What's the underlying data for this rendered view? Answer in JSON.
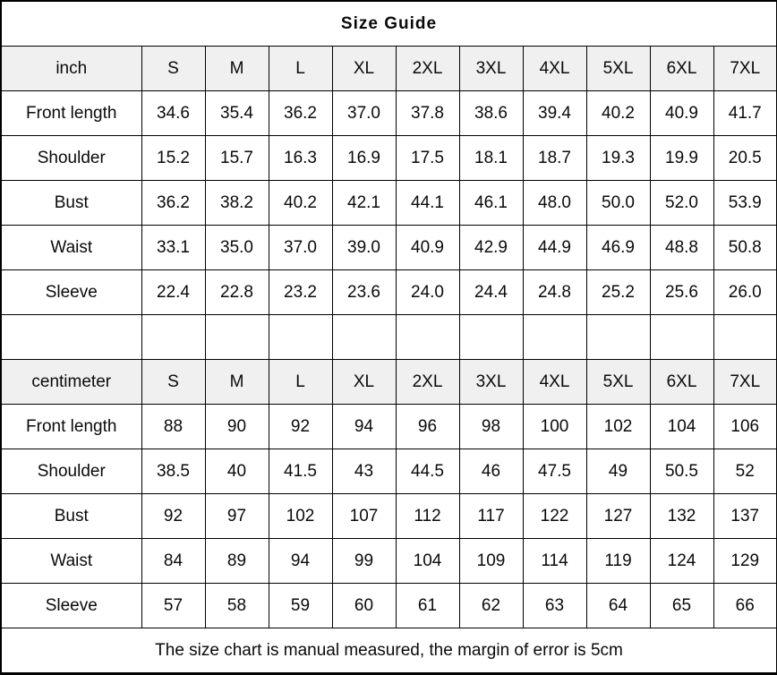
{
  "title": "Size Guide",
  "footer_note": "The size chart is manual measured, the margin of error is 5cm",
  "colors": {
    "header_background": "#f0f0f0",
    "border": "#000000",
    "text": "#0a0a0a",
    "page_background": "#ffffff"
  },
  "chart_data": [
    {
      "type": "table",
      "title": "Size Guide",
      "unit_header": "inch",
      "columns": [
        "inch",
        "S",
        "M",
        "L",
        "XL",
        "2XL",
        "3XL",
        "4XL",
        "5XL",
        "6XL",
        "7XL"
      ],
      "rows": [
        {
          "label": "Front length",
          "values": [
            "34.6",
            "35.4",
            "36.2",
            "37.0",
            "37.8",
            "38.6",
            "39.4",
            "40.2",
            "40.9",
            "41.7"
          ]
        },
        {
          "label": "Shoulder",
          "values": [
            "15.2",
            "15.7",
            "16.3",
            "16.9",
            "17.5",
            "18.1",
            "18.7",
            "19.3",
            "19.9",
            "20.5"
          ]
        },
        {
          "label": "Bust",
          "values": [
            "36.2",
            "38.2",
            "40.2",
            "42.1",
            "44.1",
            "46.1",
            "48.0",
            "50.0",
            "52.0",
            "53.9"
          ]
        },
        {
          "label": "Waist",
          "values": [
            "33.1",
            "35.0",
            "37.0",
            "39.0",
            "40.9",
            "42.9",
            "44.9",
            "46.9",
            "48.8",
            "50.8"
          ]
        },
        {
          "label": "Sleeve",
          "values": [
            "22.4",
            "22.8",
            "23.2",
            "23.6",
            "24.0",
            "24.4",
            "24.8",
            "25.2",
            "25.6",
            "26.0"
          ]
        }
      ]
    },
    {
      "type": "table",
      "title": "Size Guide",
      "unit_header": "centimeter",
      "columns": [
        "centimeter",
        "S",
        "M",
        "L",
        "XL",
        "2XL",
        "3XL",
        "4XL",
        "5XL",
        "6XL",
        "7XL"
      ],
      "rows": [
        {
          "label": "Front length",
          "values": [
            "88",
            "90",
            "92",
            "94",
            "96",
            "98",
            "100",
            "102",
            "104",
            "106"
          ]
        },
        {
          "label": "Shoulder",
          "values": [
            "38.5",
            "40",
            "41.5",
            "43",
            "44.5",
            "46",
            "47.5",
            "49",
            "50.5",
            "52"
          ]
        },
        {
          "label": "Bust",
          "values": [
            "92",
            "97",
            "102",
            "107",
            "112",
            "117",
            "122",
            "127",
            "132",
            "137"
          ]
        },
        {
          "label": "Waist",
          "values": [
            "84",
            "89",
            "94",
            "99",
            "104",
            "109",
            "114",
            "119",
            "124",
            "129"
          ]
        },
        {
          "label": "Sleeve",
          "values": [
            "57",
            "58",
            "59",
            "60",
            "61",
            "62",
            "63",
            "64",
            "65",
            "66"
          ]
        }
      ]
    }
  ]
}
